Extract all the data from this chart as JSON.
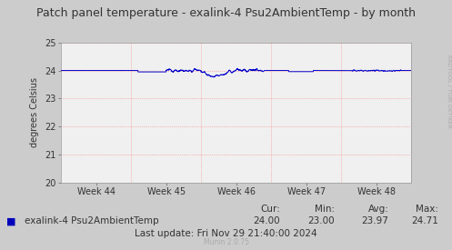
{
  "title": "Patch panel temperature - exalink-4 Psu2AmbientTemp - by month",
  "ylabel": "degrees Celsius",
  "ylim": [
    20,
    25
  ],
  "yticks": [
    20,
    21,
    22,
    23,
    24,
    25
  ],
  "xtick_labels": [
    "Week 44",
    "Week 45",
    "Week 46",
    "Week 47",
    "Week 48"
  ],
  "line_color": "#0000cc",
  "bg_color": "#cccccc",
  "plot_bg_color": "#f0f0f0",
  "grid_color": "#ff8080",
  "legend_label": "exalink-4 Psu2AmbientTemp",
  "legend_color": "#0000bb",
  "cur_val": "24.00",
  "min_val": "23.00",
  "avg_val": "23.97",
  "max_val": "24.71",
  "last_update": "Last update: Fri Nov 29 21:40:00 2024",
  "munin_version": "Munin 2.0.75",
  "rrdtool_label": "RRDTOOL / TOBI OETIKER",
  "title_fontsize": 9,
  "axis_fontsize": 7,
  "legend_fontsize": 7.5,
  "stats_fontsize": 7.5
}
